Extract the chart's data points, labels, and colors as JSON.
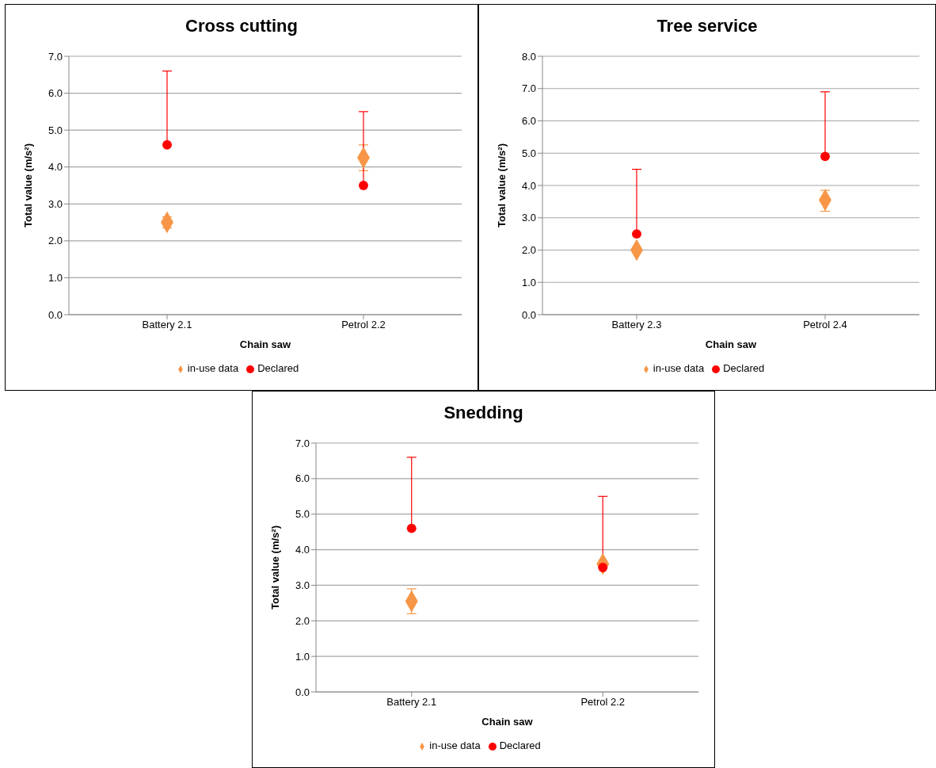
{
  "chart_data": [
    {
      "type": "scatter",
      "title": "Cross cutting",
      "xlabel": "Chain saw",
      "ylabel": "Total value (m/s²)",
      "categories": [
        "Battery 2.1",
        "Petrol 2.2"
      ],
      "ylim": [
        0,
        7
      ],
      "yticks": [
        {
          "value": 0,
          "label": "0.0"
        },
        {
          "value": 1,
          "label": "1.0"
        },
        {
          "value": 2,
          "label": "2.0"
        },
        {
          "value": 3,
          "label": "3.0"
        },
        {
          "value": 4,
          "label": "4.0"
        },
        {
          "value": 5,
          "label": "5.0"
        },
        {
          "value": 6,
          "label": "6.0"
        },
        {
          "value": 7,
          "label": "7.0"
        }
      ],
      "grid": "y",
      "legend": "bottom",
      "series": [
        {
          "name": "in-use data",
          "color": "#f79646",
          "marker": "diamond",
          "values": [
            2.5,
            4.25
          ],
          "errors": [
            [
              2.35,
              2.65
            ],
            [
              3.9,
              4.6
            ]
          ]
        },
        {
          "name": "Declared",
          "color": "#ff0000",
          "marker": "circle",
          "values": [
            4.6,
            3.5
          ],
          "errors": [
            [
              4.6,
              6.6
            ],
            [
              3.5,
              5.5
            ]
          ]
        }
      ]
    },
    {
      "type": "scatter",
      "title": "Tree service",
      "xlabel": "Chain saw",
      "ylabel": "Total value (m/s²)",
      "categories": [
        "Battery 2.3",
        "Petrol 2.4"
      ],
      "ylim": [
        0,
        8
      ],
      "yticks": [
        {
          "value": 0,
          "label": "0.0"
        },
        {
          "value": 1,
          "label": "1.0"
        },
        {
          "value": 2,
          "label": "2.0"
        },
        {
          "value": 3,
          "label": "3.0"
        },
        {
          "value": 4,
          "label": "4.0"
        },
        {
          "value": 5,
          "label": "5.0"
        },
        {
          "value": 6,
          "label": "6.0"
        },
        {
          "value": 7,
          "label": "7.0"
        },
        {
          "value": 8,
          "label": "8.0"
        }
      ],
      "grid": "y",
      "legend": "bottom",
      "series": [
        {
          "name": "in-use data",
          "color": "#f79646",
          "marker": "diamond",
          "values": [
            2.0,
            3.55
          ],
          "errors": [
            null,
            [
              3.2,
              3.85
            ]
          ]
        },
        {
          "name": "Declared",
          "color": "#ff0000",
          "marker": "circle",
          "values": [
            2.5,
            4.9
          ],
          "errors": [
            [
              2.5,
              4.5
            ],
            [
              4.9,
              6.9
            ]
          ]
        }
      ]
    },
    {
      "type": "scatter",
      "title": "Snedding",
      "xlabel": "Chain saw",
      "ylabel": "Total value (m/s²)",
      "categories": [
        "Battery  2.1",
        "Petrol 2.2"
      ],
      "ylim": [
        0,
        7
      ],
      "yticks": [
        {
          "value": 0,
          "label": "0.0"
        },
        {
          "value": 1,
          "label": "1.0"
        },
        {
          "value": 2,
          "label": "2.0"
        },
        {
          "value": 3,
          "label": "3.0"
        },
        {
          "value": 4,
          "label": "4.0"
        },
        {
          "value": 5,
          "label": "5.0"
        },
        {
          "value": 6,
          "label": "6.0"
        },
        {
          "value": 7,
          "label": "7.0"
        }
      ],
      "grid": "y",
      "legend": "bottom",
      "series": [
        {
          "name": "in-use data",
          "color": "#f79646",
          "marker": "diamond",
          "values": [
            2.55,
            3.6
          ],
          "errors": [
            [
              2.2,
              2.9
            ],
            null
          ]
        },
        {
          "name": "Declared",
          "color": "#ff0000",
          "marker": "circle",
          "values": [
            4.6,
            3.5
          ],
          "errors": [
            [
              4.6,
              6.6
            ],
            [
              3.5,
              5.5
            ]
          ]
        }
      ]
    }
  ]
}
